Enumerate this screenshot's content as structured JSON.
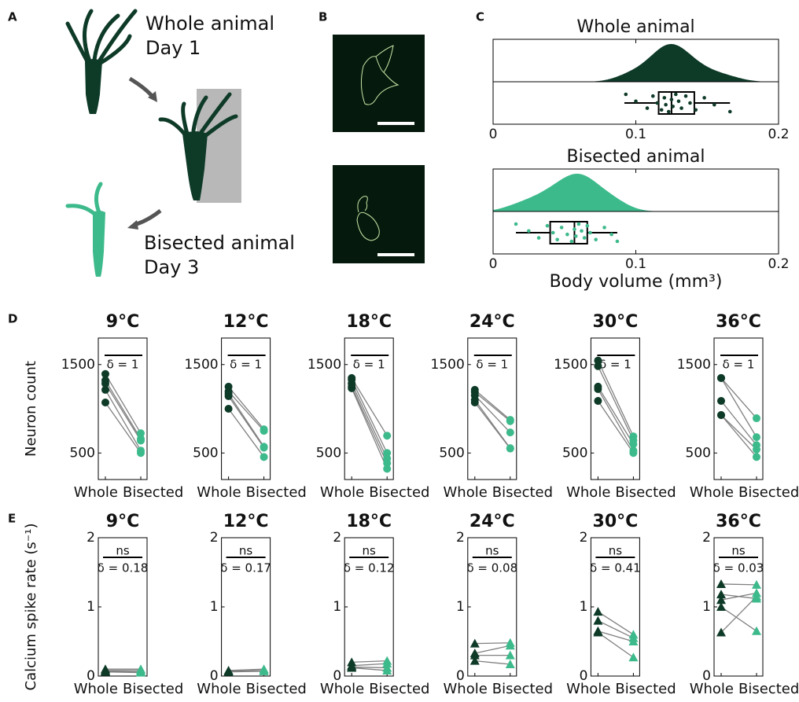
{
  "panel_a": {
    "label": "A",
    "top_text": "Whole animal",
    "top_day": "Day 1",
    "bottom_text": "Bisected animal",
    "bottom_day": "Day 3"
  },
  "panel_b": {
    "label": "B"
  },
  "chart_data": [
    {
      "type": "raincloud",
      "panel_label": "C",
      "title": "Whole animal",
      "color": "#0e3a28",
      "values": [
        0.093,
        0.1,
        0.108,
        0.112,
        0.115,
        0.118,
        0.12,
        0.121,
        0.123,
        0.125,
        0.126,
        0.128,
        0.13,
        0.132,
        0.135,
        0.138,
        0.142,
        0.148,
        0.155,
        0.166
      ],
      "box": {
        "whisker_low": 0.092,
        "q1": 0.116,
        "median": 0.125,
        "q3": 0.141,
        "whisker_high": 0.166
      },
      "xlim": [
        0,
        0.2
      ],
      "xticks": [
        0,
        0.1,
        0.2
      ]
    },
    {
      "type": "raincloud",
      "title": "Bisected animal",
      "color": "#3dba8c",
      "xlabel": "Body volume (mm³)",
      "values": [
        0.016,
        0.025,
        0.032,
        0.038,
        0.042,
        0.045,
        0.048,
        0.052,
        0.055,
        0.057,
        0.058,
        0.06,
        0.062,
        0.064,
        0.066,
        0.068,
        0.072,
        0.078,
        0.083,
        0.087
      ],
      "box": {
        "whisker_low": 0.016,
        "q1": 0.04,
        "median": 0.057,
        "q3": 0.066,
        "whisker_high": 0.087
      },
      "xlim": [
        0,
        0.2
      ],
      "xticks": [
        0,
        0.1,
        0.2
      ]
    },
    {
      "type": "paired",
      "panel_label": "D",
      "ylabel": "Neuron count",
      "marker": "circle",
      "categories": [
        "Whole",
        "Bisected"
      ],
      "colors": [
        "#0e3a28",
        "#3dba8c"
      ],
      "ylim": [
        200,
        1800
      ],
      "yticks": [
        500,
        1500
      ],
      "panels": [
        {
          "title": "9°C",
          "annotation": "δ = 1",
          "values": [
            [
              1393,
              1321,
              1286,
              1214,
              1071
            ],
            [
              723,
              661,
              640,
              527,
              500
            ]
          ]
        },
        {
          "title": "12°C",
          "annotation": "δ = 1",
          "values": [
            [
              1250,
              1196,
              1170,
              1143,
              1000
            ],
            [
              768,
              750,
              571,
              560,
              455
            ]
          ]
        },
        {
          "title": "18°C",
          "annotation": "δ = 1",
          "values": [
            [
              1348,
              1330,
              1286,
              1250,
              1232
            ],
            [
              696,
              500,
              437,
              384,
              321
            ]
          ]
        },
        {
          "title": "24°C",
          "annotation": "δ = 1",
          "values": [
            [
              1214,
              1190,
              1152,
              1100,
              1071
            ],
            [
              875,
              860,
              732,
              554,
              550
            ]
          ]
        },
        {
          "title": "30°C",
          "annotation": "δ = 1",
          "values": [
            [
              1545,
              1482,
              1250,
              1223,
              1089
            ],
            [
              688,
              643,
              600,
              527,
              500
            ]
          ]
        },
        {
          "title": "36°C",
          "annotation": "δ = 1",
          "values": [
            [
              1348,
              1348,
              1089,
              929,
              929
            ],
            [
              893,
              679,
              589,
              540,
              455
            ]
          ]
        }
      ]
    },
    {
      "type": "paired",
      "panel_label": "E",
      "ylabel": "Calcium spike rate (s⁻¹)",
      "marker": "triangle",
      "categories": [
        "Whole",
        "Bisected"
      ],
      "colors": [
        "#0e3a28",
        "#3dba8c"
      ],
      "ylim": [
        0,
        2
      ],
      "yticks": [
        0,
        1,
        2
      ],
      "panels": [
        {
          "title": "9°C",
          "significance": "ns",
          "annotation": "δ = 0.18",
          "values": [
            [
              0.1,
              0.08,
              0.07,
              0.06
            ],
            [
              0.1,
              0.08,
              0.06,
              0.05
            ]
          ]
        },
        {
          "title": "12°C",
          "significance": "ns",
          "annotation": "δ = 0.17",
          "values": [
            [
              0.08,
              0.07,
              0.06
            ],
            [
              0.1,
              0.08,
              0.07
            ]
          ]
        },
        {
          "title": "18°C",
          "significance": "ns",
          "annotation": "δ = 0.12",
          "values": [
            [
              0.2,
              0.15,
              0.13,
              0.12
            ],
            [
              0.22,
              0.18,
              0.12,
              0.08
            ]
          ]
        },
        {
          "title": "24°C",
          "significance": "ns",
          "annotation": "δ = 0.08",
          "values": [
            [
              0.47,
              0.33,
              0.3,
              0.22
            ],
            [
              0.48,
              0.44,
              0.3,
              0.17
            ]
          ]
        },
        {
          "title": "30°C",
          "significance": "ns",
          "annotation": "δ = 0.41",
          "values": [
            [
              0.93,
              0.8,
              0.65,
              0.63
            ],
            [
              0.6,
              0.55,
              0.5,
              0.27
            ]
          ]
        },
        {
          "title": "36°C",
          "significance": "ns",
          "annotation": "δ = 0.03",
          "values": [
            [
              1.33,
              1.18,
              1.1,
              1.0,
              0.63
            ],
            [
              1.32,
              1.12,
              1.2,
              0.65,
              1.15
            ]
          ]
        }
      ]
    }
  ]
}
